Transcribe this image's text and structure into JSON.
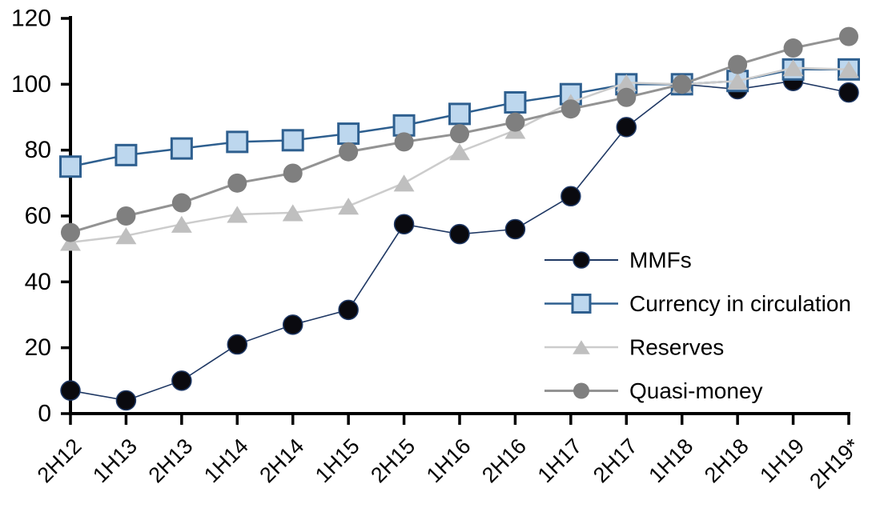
{
  "chart_data": {
    "type": "line",
    "title": "",
    "xlabel": "",
    "ylabel": "",
    "categories": [
      "2H12",
      "1H13",
      "2H13",
      "1H14",
      "2H14",
      "1H15",
      "2H15",
      "1H16",
      "2H16",
      "1H17",
      "2H17",
      "1H18",
      "2H18",
      "1H19",
      "2H19*"
    ],
    "series": [
      {
        "name": "MMFs",
        "marker": "circle",
        "line_color": "#1f3864",
        "line_width": 1.6,
        "marker_fill": "#0a0a0f",
        "marker_stroke": "#1f3864",
        "marker_stroke_width": 1.5,
        "values": [
          7,
          4,
          10,
          21,
          27,
          31.5,
          57.5,
          54.5,
          56,
          66,
          87,
          100,
          98.5,
          101,
          97.5
        ]
      },
      {
        "name": "Currency in circulation",
        "marker": "square",
        "line_color": "#2e5f8f",
        "line_width": 2.5,
        "marker_fill": "#bdd7ee",
        "marker_stroke": "#2e5f8f",
        "marker_stroke_width": 3,
        "values": [
          75,
          78.5,
          80.5,
          82.5,
          83,
          85,
          87.5,
          91,
          94.5,
          97,
          100,
          100,
          101,
          104.5,
          104.5
        ]
      },
      {
        "name": "Reserves",
        "marker": "triangle",
        "line_color": "#cccccc",
        "line_width": 2.5,
        "marker_fill": "#bfbfbf",
        "marker_stroke": "#bfbfbf",
        "marker_stroke_width": 0,
        "values": [
          52,
          54,
          57.5,
          60.5,
          61,
          63,
          70,
          79.5,
          86,
          94.5,
          100.5,
          100,
          101,
          105,
          104.5
        ]
      },
      {
        "name": "Quasi-money",
        "marker": "circle",
        "line_color": "#939393",
        "line_width": 3,
        "marker_fill": "#7f7f7f",
        "marker_stroke": "#7f7f7f",
        "marker_stroke_width": 0,
        "values": [
          55,
          60,
          64,
          70,
          73,
          79.5,
          82.5,
          85,
          88.5,
          92.5,
          96,
          100,
          106,
          111,
          114.5
        ]
      }
    ],
    "y_axis": {
      "min": 0,
      "max": 120,
      "step": 20,
      "tick_labels": [
        "0",
        "20",
        "40",
        "60",
        "80",
        "100",
        "120"
      ]
    },
    "x_axis": {
      "tick_labels_rotation_deg": -45
    },
    "legend": {
      "position": "inside-right",
      "entries": [
        "MMFs",
        "Currency in circulation",
        "Reserves",
        "Quasi-money"
      ]
    },
    "grid": false,
    "axis_color": "#000000"
  }
}
